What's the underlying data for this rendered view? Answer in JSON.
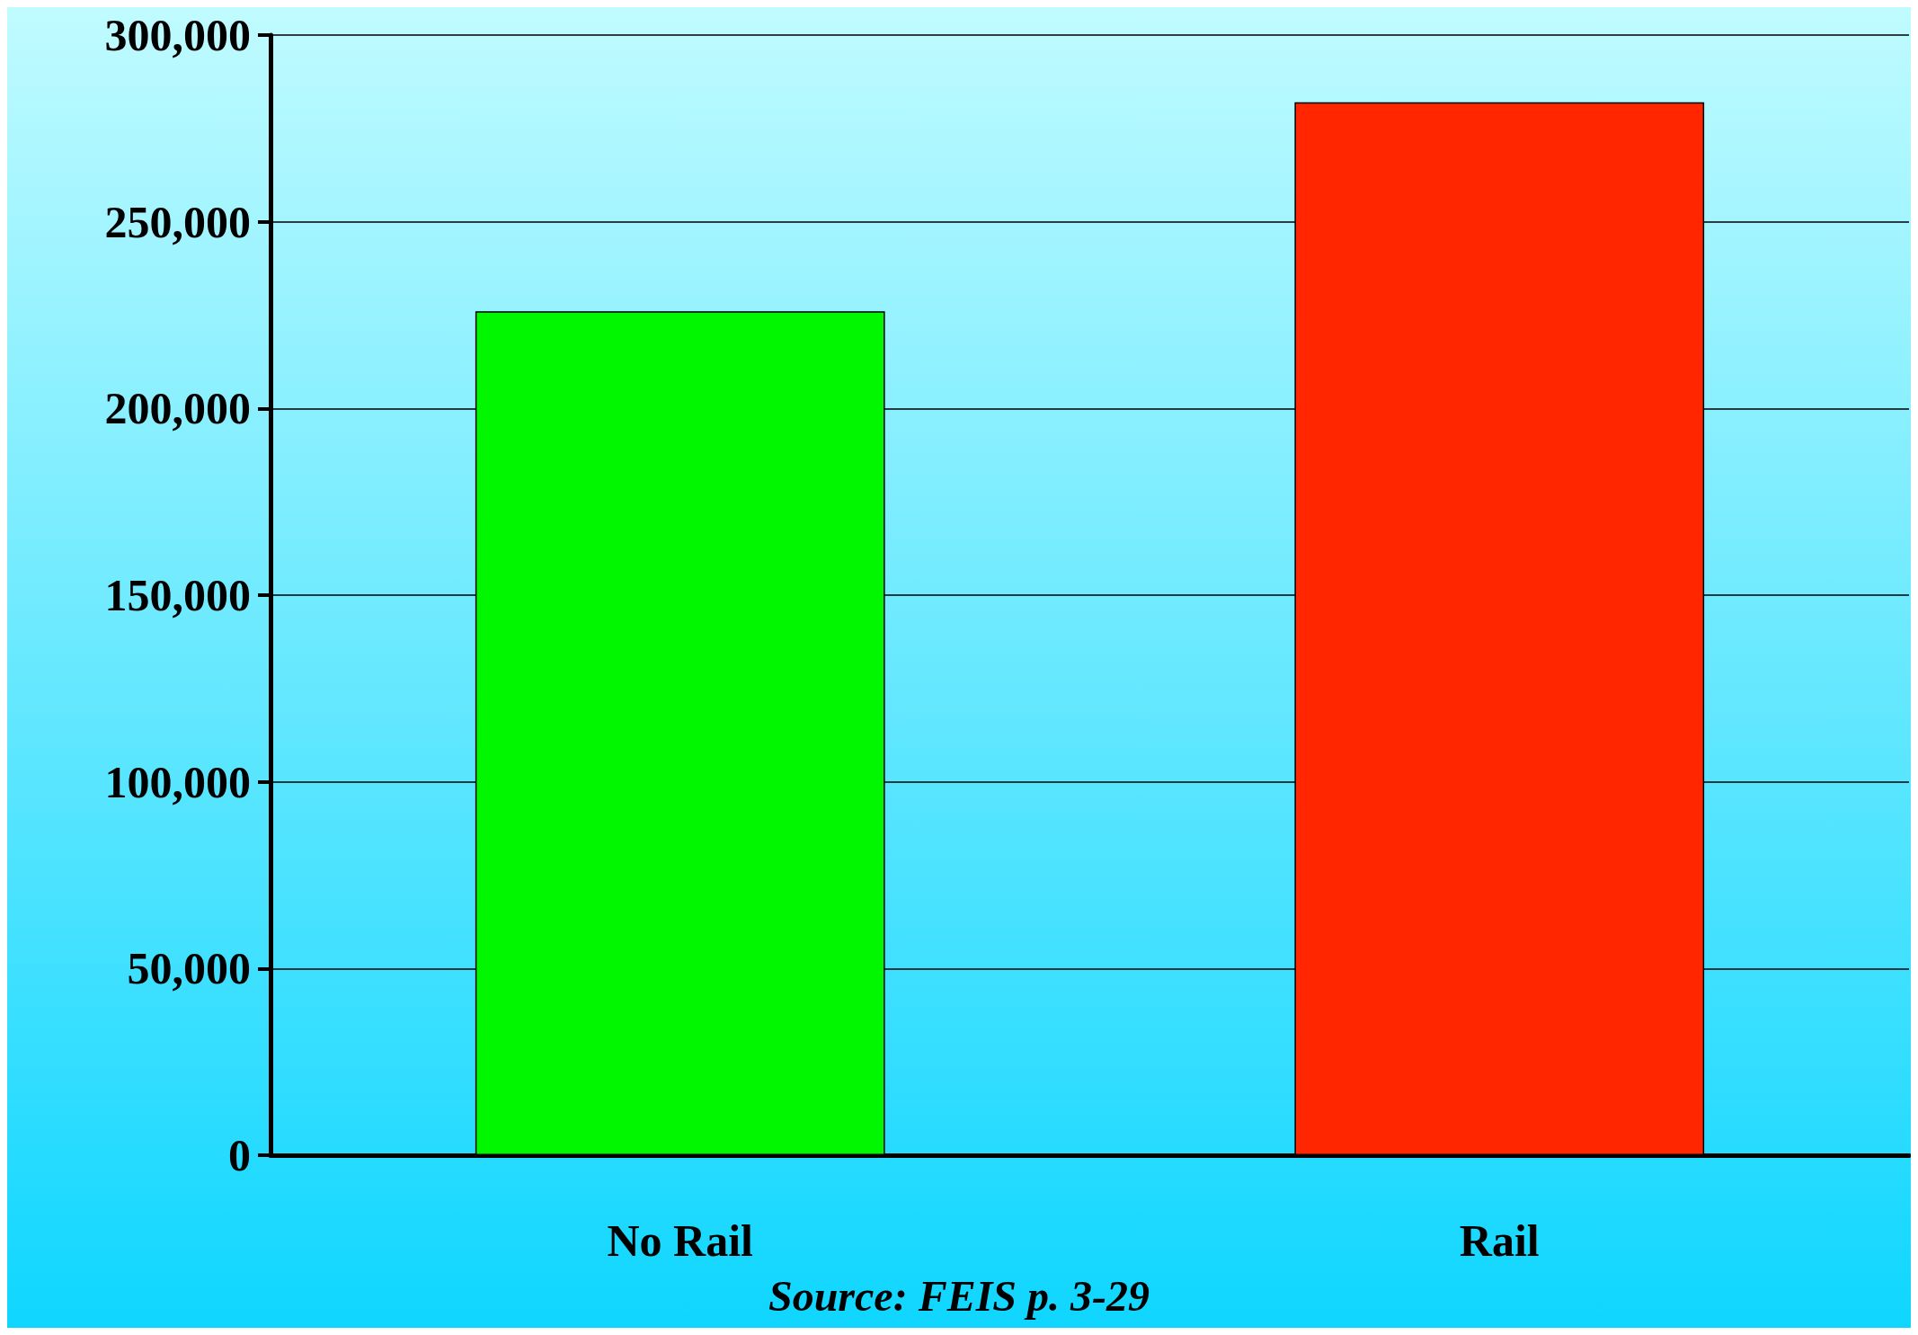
{
  "chart_data": {
    "type": "bar",
    "categories": [
      "No Rail",
      "Rail"
    ],
    "colors": [
      "#00f700",
      "#ff2600"
    ],
    "values": [
      226000,
      282000
    ],
    "ylim": [
      0,
      300000
    ],
    "yticks": [
      0,
      {
        "value": 50000,
        "label": "50,000"
      },
      {
        "value": 100000,
        "label": "100,000"
      },
      {
        "value": 150000,
        "label": "150,000"
      },
      {
        "value": 200000,
        "label": "200,000"
      },
      {
        "value": 250000,
        "label": "250,000"
      },
      {
        "value": 300000,
        "label": "300,000"
      }
    ],
    "grid": "y",
    "annotations": [
      "Source: FEIS p. 3-29"
    ]
  }
}
